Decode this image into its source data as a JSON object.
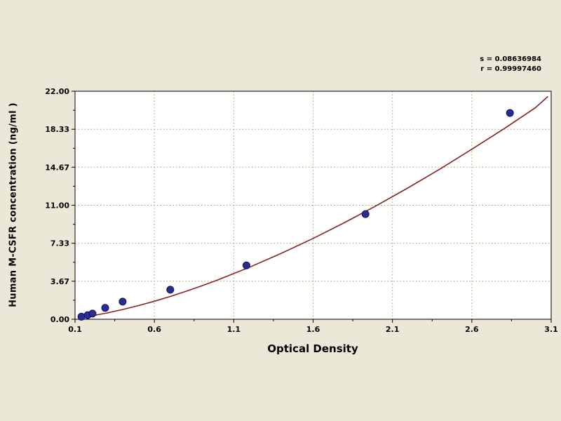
{
  "chart_data": {
    "type": "scatter",
    "title": "",
    "xlabel": "Optical Density",
    "ylabel": "Human M-CSFR concentration (ng/ml )",
    "xlim": [
      0.1,
      3.1
    ],
    "ylim": [
      0,
      22
    ],
    "grid": "dotted",
    "legend": "none",
    "x_ticks": {
      "values": [
        0.1,
        0.6,
        1.1,
        1.6,
        2.1,
        2.6,
        3.1
      ],
      "labels": [
        "0.1",
        "0.6",
        "1.1",
        "1.6",
        "2.1",
        "2.6",
        "3.1"
      ]
    },
    "y_ticks": {
      "values": [
        0,
        3.67,
        7.33,
        11,
        14.67,
        18.33,
        22
      ],
      "labels": [
        "0.00",
        "3.67",
        "7.33",
        "11.00",
        "14.67",
        "18.33",
        "22.00"
      ]
    },
    "points": [
      [
        0.14,
        0.25
      ],
      [
        0.18,
        0.4
      ],
      [
        0.21,
        0.55
      ],
      [
        0.29,
        1.1
      ],
      [
        0.4,
        1.7
      ],
      [
        0.7,
        2.85
      ],
      [
        1.18,
        5.2
      ],
      [
        1.93,
        10.15
      ],
      [
        2.84,
        19.9
      ]
    ],
    "fit_curve": [
      [
        0.12,
        0.15
      ],
      [
        0.2,
        0.32
      ],
      [
        0.3,
        0.6
      ],
      [
        0.4,
        0.94
      ],
      [
        0.5,
        1.32
      ],
      [
        0.6,
        1.74
      ],
      [
        0.7,
        2.2
      ],
      [
        0.8,
        2.7
      ],
      [
        0.9,
        3.23
      ],
      [
        1.0,
        3.8
      ],
      [
        1.2,
        5.02
      ],
      [
        1.4,
        6.36
      ],
      [
        1.6,
        7.8
      ],
      [
        1.8,
        9.34
      ],
      [
        2.0,
        10.97
      ],
      [
        2.2,
        12.69
      ],
      [
        2.4,
        14.5
      ],
      [
        2.6,
        16.4
      ],
      [
        2.8,
        18.35
      ],
      [
        3.0,
        20.4
      ],
      [
        3.08,
        21.5
      ]
    ],
    "stats": {
      "s_line": "s = 0.08636984",
      "r_line": "r = 0.99997460"
    },
    "colors": {
      "background": "#ece8d8",
      "plot_bg": "#ffffff",
      "grid": "#8fa763",
      "curve": "#8b2020",
      "point_fill": "#2b2b96",
      "point_stroke": "#14145a",
      "axis": "#000000"
    }
  }
}
